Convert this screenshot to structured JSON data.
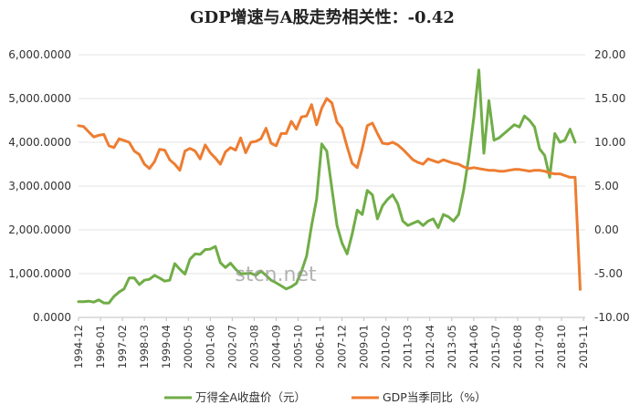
{
  "watermark": "stcn.net",
  "chart_data": {
    "type": "line",
    "title": "GDP增速与A股走势相关性：-0.42",
    "y_left": {
      "ticks": [
        "0.0000",
        "1,000.0000",
        "2,000.0000",
        "3,000.0000",
        "4,000.0000",
        "5,000.0000",
        "6,000.0000"
      ],
      "range": [
        0,
        6000
      ]
    },
    "y_right": {
      "ticks": [
        "-10.00",
        "-5.00",
        "0.00",
        "5.00",
        "10.00",
        "15.00",
        "20.00"
      ],
      "range": [
        -10,
        20
      ]
    },
    "x_ticks": [
      "1994-12",
      "1996-01",
      "1997-02",
      "1998-03",
      "1999-04",
      "2000-05",
      "2001-06",
      "2002-07",
      "2003-08",
      "2004-09",
      "2005-10",
      "2006-11",
      "2007-12",
      "2009-01",
      "2010-02",
      "2011-03",
      "2012-04",
      "2013-05",
      "2014-06",
      "2015-07",
      "2016-08",
      "2017-09",
      "2018-10",
      "2019-11"
    ],
    "x_start_index": 0,
    "x_tick_step": 4.333,
    "x_range": [
      0,
      100
    ],
    "grid": "horizontal",
    "legend_position": "bottom",
    "series": [
      {
        "name": "万得全A收盘价（元）",
        "axis": "left",
        "color": "#70ad47",
        "values": [
          360,
          360,
          370,
          350,
          400,
          330,
          330,
          480,
          580,
          650,
          900,
          900,
          750,
          850,
          870,
          960,
          900,
          830,
          850,
          1230,
          1100,
          990,
          1330,
          1450,
          1440,
          1550,
          1560,
          1620,
          1250,
          1140,
          1240,
          1100,
          1000,
          1000,
          1010,
          960,
          1060,
          960,
          850,
          790,
          720,
          650,
          700,
          780,
          1050,
          1400,
          2100,
          2700,
          3960,
          3800,
          2950,
          2100,
          1700,
          1450,
          1900,
          2450,
          2350,
          2900,
          2800,
          2250,
          2550,
          2700,
          2800,
          2600,
          2200,
          2100,
          2150,
          2200,
          2100,
          2200,
          2250,
          2050,
          2350,
          2300,
          2200,
          2350,
          2900,
          3650,
          4550,
          5650,
          3750,
          4950,
          4050,
          4100,
          4200,
          4300,
          4400,
          4350,
          4600,
          4500,
          4350,
          3850,
          3700,
          3200,
          4200,
          4000,
          4050,
          4300,
          4000
        ]
      },
      {
        "name": "GDP当季同比（%）",
        "axis": "right",
        "color": "#ed7d31",
        "values": [
          11.9,
          11.8,
          11.2,
          10.6,
          10.8,
          10.9,
          9.6,
          9.4,
          10.4,
          10.2,
          10.0,
          9.0,
          8.6,
          7.5,
          7.0,
          7.8,
          9.2,
          9.1,
          8.0,
          7.5,
          6.8,
          9.0,
          9.3,
          9.0,
          8.1,
          9.7,
          8.8,
          8.2,
          7.5,
          8.9,
          9.4,
          9.1,
          10.5,
          8.8,
          10.0,
          10.1,
          10.4,
          11.6,
          9.9,
          9.6,
          11.0,
          11.0,
          12.4,
          11.5,
          12.9,
          13.0,
          14.3,
          12.0,
          13.9,
          15.0,
          14.5,
          12.3,
          11.6,
          9.5,
          7.6,
          7.1,
          9.3,
          11.9,
          12.2,
          11.0,
          9.9,
          9.8,
          10.0,
          9.7,
          9.2,
          8.6,
          8.0,
          7.7,
          7.5,
          8.1,
          7.9,
          7.7,
          8.0,
          7.8,
          7.6,
          7.5,
          7.2,
          7.0,
          7.1,
          7.0,
          6.9,
          6.8,
          6.8,
          6.7,
          6.7,
          6.8,
          6.9,
          6.9,
          6.8,
          6.7,
          6.8,
          6.8,
          6.7,
          6.5,
          6.4,
          6.4,
          6.2,
          6.0,
          6.0,
          -6.8
        ]
      }
    ]
  }
}
